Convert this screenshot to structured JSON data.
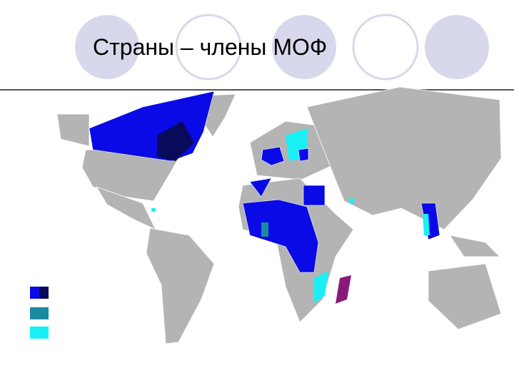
{
  "header": {
    "title": "Страны – члены МОФ"
  }
}
